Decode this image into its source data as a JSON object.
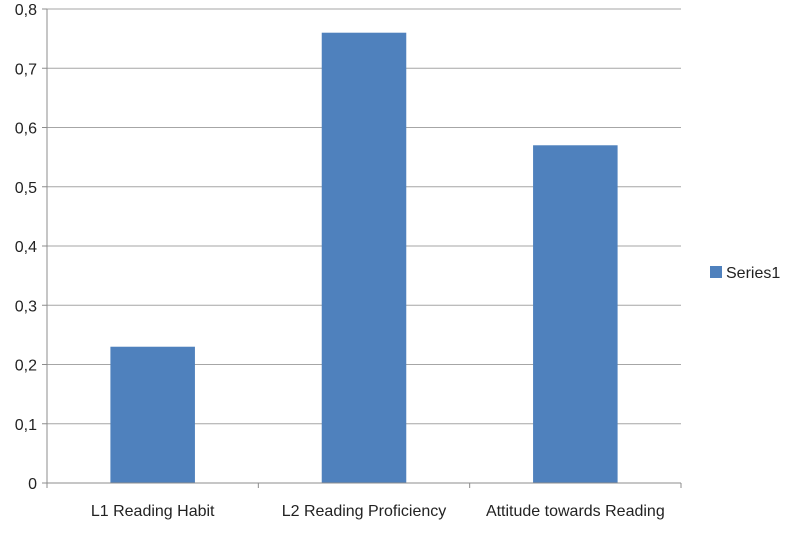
{
  "chart_data": {
    "type": "bar",
    "categories": [
      "L1 Reading Habit",
      "L2 Reading Proficiency",
      "Attitude towards Reading"
    ],
    "series": [
      {
        "name": "Series1",
        "values": [
          0.23,
          0.76,
          0.57
        ]
      }
    ],
    "ylim": [
      0,
      0.8
    ],
    "yticks": [
      0,
      0.1,
      0.2,
      0.3,
      0.4,
      0.5,
      0.6,
      0.7,
      0.8
    ],
    "ytick_labels": [
      "0",
      "0,1",
      "0,2",
      "0,3",
      "0,4",
      "0,5",
      "0,6",
      "0,7",
      "0,8"
    ],
    "title": "",
    "xlabel": "",
    "ylabel": "",
    "grid": true,
    "legend_position": "right",
    "colors": {
      "bar": "#4F81BD",
      "grid": "#A6A6A6",
      "axis": "#8C8C8C"
    }
  }
}
